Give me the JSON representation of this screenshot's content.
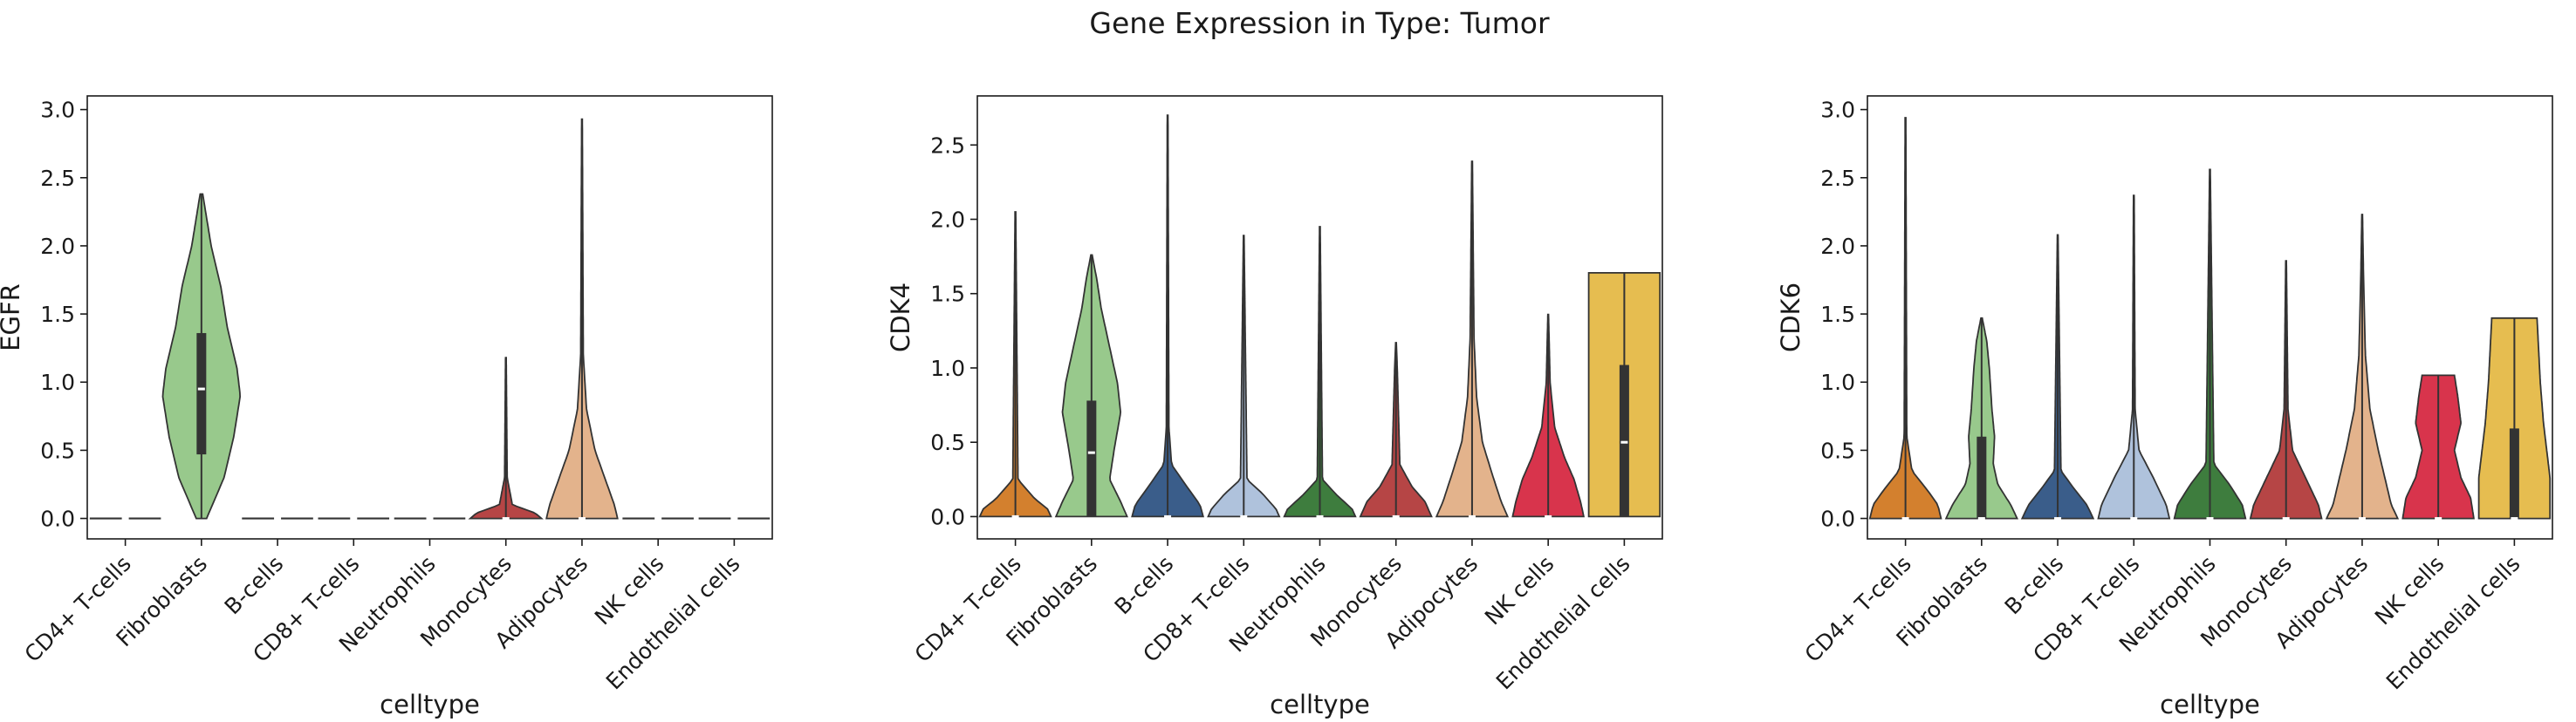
{
  "title": "Gene Expression in Type: Tumor",
  "palette": {
    "CD4+ T-cells": "#d3802e",
    "Fibroblasts": "#98c98c",
    "B-cells": "#3a5d8a",
    "CD8+ T-cells": "#afc2dc",
    "Neutrophils": "#3e7d3e",
    "Monocytes": "#b64545",
    "Adipocytes": "#e3b38c",
    "NK cells": "#d8344c",
    "Endothelial cells": "#e6bd50"
  },
  "chart_data": [
    {
      "type": "violin",
      "xlabel": "celltype",
      "ylabel": "EGFR",
      "ylim": [
        -0.15,
        3.1
      ],
      "yticks": [
        "0.0",
        "0.5",
        "1.0",
        "1.5",
        "2.0",
        "2.5",
        "3.0"
      ],
      "categories": [
        "CD4+ T-cells",
        "Fibroblasts",
        "B-cells",
        "CD8+ T-cells",
        "Neutrophils",
        "Monocytes",
        "Adipocytes",
        "NK cells",
        "Endothelial cells"
      ],
      "violins": [
        {
          "max": 0.0,
          "q1": 0.0,
          "median": 0.0,
          "q3": 0.0,
          "profile": [
            [
              0,
              0.55
            ],
            [
              0,
              0.55
            ]
          ]
        },
        {
          "max": 2.38,
          "q1": 0.47,
          "median": 0.95,
          "q3": 1.36,
          "profile": [
            [
              0,
              0.08
            ],
            [
              0.3,
              0.35
            ],
            [
              0.6,
              0.5
            ],
            [
              0.9,
              0.6
            ],
            [
              1.1,
              0.55
            ],
            [
              1.4,
              0.4
            ],
            [
              1.7,
              0.3
            ],
            [
              2.0,
              0.15
            ],
            [
              2.38,
              0.02
            ]
          ]
        },
        {
          "max": 0.0,
          "q1": 0.0,
          "median": 0.0,
          "q3": 0.0,
          "profile": [
            [
              0,
              0.55
            ],
            [
              0,
              0.55
            ]
          ]
        },
        {
          "max": 0.0,
          "q1": 0.0,
          "median": 0.0,
          "q3": 0.0,
          "profile": [
            [
              0,
              0.55
            ],
            [
              0,
              0.55
            ]
          ]
        },
        {
          "max": 0.0,
          "q1": 0.0,
          "median": 0.0,
          "q3": 0.0,
          "profile": [
            [
              0,
              0.55
            ],
            [
              0,
              0.55
            ]
          ]
        },
        {
          "max": 1.18,
          "q1": 0.0,
          "median": 0.0,
          "q3": 0.0,
          "profile": [
            [
              0,
              0.55
            ],
            [
              0.04,
              0.45
            ],
            [
              0.1,
              0.1
            ],
            [
              0.3,
              0.02
            ],
            [
              1.18,
              0.005
            ]
          ]
        },
        {
          "max": 2.93,
          "q1": 0.0,
          "median": 0.0,
          "q3": 0.0,
          "profile": [
            [
              0,
              0.55
            ],
            [
              0.1,
              0.5
            ],
            [
              0.3,
              0.35
            ],
            [
              0.5,
              0.2
            ],
            [
              0.8,
              0.07
            ],
            [
              1.2,
              0.02
            ],
            [
              2.93,
              0.005
            ]
          ]
        },
        {
          "max": 0.0,
          "q1": 0.0,
          "median": 0.0,
          "q3": 0.0,
          "profile": [
            [
              0,
              0.55
            ],
            [
              0,
              0.55
            ]
          ]
        },
        {
          "max": 0.0,
          "q1": 0.0,
          "median": 0.0,
          "q3": 0.0,
          "profile": [
            [
              0,
              0.55
            ],
            [
              0,
              0.55
            ]
          ]
        }
      ]
    },
    {
      "type": "violin",
      "xlabel": "celltype",
      "ylabel": "CDK4",
      "ylim": [
        -0.15,
        2.83
      ],
      "yticks": [
        "0.0",
        "0.5",
        "1.0",
        "1.5",
        "2.0",
        "2.5"
      ],
      "categories": [
        "CD4+ T-cells",
        "Fibroblasts",
        "B-cells",
        "CD8+ T-cells",
        "Neutrophils",
        "Monocytes",
        "Adipocytes",
        "NK cells",
        "Endothelial cells"
      ],
      "violins": [
        {
          "max": 2.05,
          "q1": 0.0,
          "median": 0.0,
          "q3": 0.0,
          "profile": [
            [
              0,
              0.55
            ],
            [
              0.05,
              0.5
            ],
            [
              0.12,
              0.3
            ],
            [
              0.25,
              0.04
            ],
            [
              2.05,
              0.005
            ]
          ]
        },
        {
          "max": 1.76,
          "q1": 0.0,
          "median": 0.43,
          "q3": 0.78,
          "profile": [
            [
              0,
              0.55
            ],
            [
              0.1,
              0.45
            ],
            [
              0.25,
              0.28
            ],
            [
              0.45,
              0.35
            ],
            [
              0.7,
              0.45
            ],
            [
              0.9,
              0.4
            ],
            [
              1.1,
              0.3
            ],
            [
              1.4,
              0.15
            ],
            [
              1.6,
              0.08
            ],
            [
              1.76,
              0.01
            ]
          ]
        },
        {
          "max": 2.7,
          "q1": 0.0,
          "median": 0.0,
          "q3": 0.0,
          "profile": [
            [
              0,
              0.55
            ],
            [
              0.08,
              0.5
            ],
            [
              0.2,
              0.3
            ],
            [
              0.35,
              0.06
            ],
            [
              0.6,
              0.02
            ],
            [
              2.7,
              0.005
            ]
          ]
        },
        {
          "max": 1.89,
          "q1": 0.0,
          "median": 0.0,
          "q3": 0.0,
          "profile": [
            [
              0,
              0.55
            ],
            [
              0.05,
              0.5
            ],
            [
              0.15,
              0.3
            ],
            [
              0.25,
              0.05
            ],
            [
              1.89,
              0.005
            ]
          ]
        },
        {
          "max": 1.95,
          "q1": 0.0,
          "median": 0.0,
          "q3": 0.0,
          "profile": [
            [
              0,
              0.55
            ],
            [
              0.05,
              0.5
            ],
            [
              0.15,
              0.25
            ],
            [
              0.25,
              0.04
            ],
            [
              1.95,
              0.005
            ]
          ]
        },
        {
          "max": 1.17,
          "q1": 0.0,
          "median": 0.0,
          "q3": 0.0,
          "profile": [
            [
              0,
              0.55
            ],
            [
              0.1,
              0.45
            ],
            [
              0.2,
              0.25
            ],
            [
              0.35,
              0.06
            ],
            [
              1.0,
              0.02
            ],
            [
              1.17,
              0.005
            ]
          ]
        },
        {
          "max": 2.39,
          "q1": 0.0,
          "median": 0.0,
          "q3": 0.0,
          "profile": [
            [
              0,
              0.55
            ],
            [
              0.1,
              0.45
            ],
            [
              0.3,
              0.3
            ],
            [
              0.5,
              0.16
            ],
            [
              0.8,
              0.07
            ],
            [
              1.2,
              0.03
            ],
            [
              2.39,
              0.005
            ]
          ]
        },
        {
          "max": 1.36,
          "q1": 0.0,
          "median": 0.0,
          "q3": 0.0,
          "profile": [
            [
              0,
              0.55
            ],
            [
              0.1,
              0.5
            ],
            [
              0.25,
              0.4
            ],
            [
              0.4,
              0.25
            ],
            [
              0.6,
              0.1
            ],
            [
              0.9,
              0.03
            ],
            [
              1.36,
              0.005
            ]
          ]
        },
        {
          "max": 1.64,
          "q1": 0.0,
          "median": 0.5,
          "q3": 1.02,
          "profile": [
            [
              0,
              0.55
            ],
            [
              1.64,
              0.55
            ]
          ]
        }
      ]
    },
    {
      "type": "violin",
      "xlabel": "celltype",
      "ylabel": "CDK6",
      "ylim": [
        -0.15,
        3.1
      ],
      "yticks": [
        "0.0",
        "0.5",
        "1.0",
        "1.5",
        "2.0",
        "2.5",
        "3.0"
      ],
      "categories": [
        "CD4+ T-cells",
        "Fibroblasts",
        "B-cells",
        "CD8+ T-cells",
        "Neutrophils",
        "Monocytes",
        "Adipocytes",
        "NK cells",
        "Endothelial cells"
      ],
      "violins": [
        {
          "max": 2.94,
          "q1": 0.0,
          "median": 0.0,
          "q3": 0.0,
          "profile": [
            [
              0,
              0.55
            ],
            [
              0.1,
              0.5
            ],
            [
              0.2,
              0.35
            ],
            [
              0.35,
              0.1
            ],
            [
              0.6,
              0.02
            ],
            [
              2.94,
              0.005
            ]
          ]
        },
        {
          "max": 1.47,
          "q1": 0.0,
          "median": 0.0,
          "q3": 0.6,
          "profile": [
            [
              0,
              0.55
            ],
            [
              0.1,
              0.45
            ],
            [
              0.25,
              0.25
            ],
            [
              0.4,
              0.18
            ],
            [
              0.6,
              0.2
            ],
            [
              0.8,
              0.16
            ],
            [
              1.1,
              0.12
            ],
            [
              1.3,
              0.08
            ],
            [
              1.47,
              0.01
            ]
          ]
        },
        {
          "max": 2.08,
          "q1": 0.0,
          "median": 0.0,
          "q3": 0.0,
          "profile": [
            [
              0,
              0.55
            ],
            [
              0.1,
              0.45
            ],
            [
              0.22,
              0.25
            ],
            [
              0.35,
              0.05
            ],
            [
              2.08,
              0.005
            ]
          ]
        },
        {
          "max": 2.37,
          "q1": 0.0,
          "median": 0.0,
          "q3": 0.0,
          "profile": [
            [
              0,
              0.55
            ],
            [
              0.1,
              0.5
            ],
            [
              0.3,
              0.3
            ],
            [
              0.5,
              0.08
            ],
            [
              0.8,
              0.02
            ],
            [
              2.37,
              0.005
            ]
          ]
        },
        {
          "max": 2.56,
          "q1": 0.0,
          "median": 0.0,
          "q3": 0.0,
          "profile": [
            [
              0,
              0.55
            ],
            [
              0.1,
              0.5
            ],
            [
              0.25,
              0.3
            ],
            [
              0.4,
              0.06
            ],
            [
              2.56,
              0.005
            ]
          ]
        },
        {
          "max": 1.89,
          "q1": 0.0,
          "median": 0.0,
          "q3": 0.0,
          "profile": [
            [
              0,
              0.55
            ],
            [
              0.1,
              0.5
            ],
            [
              0.3,
              0.3
            ],
            [
              0.5,
              0.1
            ],
            [
              0.8,
              0.03
            ],
            [
              1.89,
              0.005
            ]
          ]
        },
        {
          "max": 2.23,
          "q1": 0.0,
          "median": 0.0,
          "q3": 0.0,
          "profile": [
            [
              0,
              0.55
            ],
            [
              0.1,
              0.45
            ],
            [
              0.3,
              0.35
            ],
            [
              0.5,
              0.25
            ],
            [
              0.8,
              0.12
            ],
            [
              1.2,
              0.05
            ],
            [
              1.8,
              0.02
            ],
            [
              2.23,
              0.005
            ]
          ]
        },
        {
          "max": 1.05,
          "q1": 0.0,
          "median": 0.0,
          "q3": 0.0,
          "profile": [
            [
              0,
              0.55
            ],
            [
              0.15,
              0.5
            ],
            [
              0.3,
              0.35
            ],
            [
              0.5,
              0.25
            ],
            [
              0.7,
              0.35
            ],
            [
              0.9,
              0.3
            ],
            [
              1.05,
              0.25
            ]
          ]
        },
        {
          "max": 1.47,
          "q1": 0.0,
          "median": 0.0,
          "q3": 0.66,
          "profile": [
            [
              0,
              0.55
            ],
            [
              0.3,
              0.55
            ],
            [
              0.7,
              0.45
            ],
            [
              1.0,
              0.4
            ],
            [
              1.47,
              0.35
            ]
          ]
        }
      ]
    }
  ]
}
